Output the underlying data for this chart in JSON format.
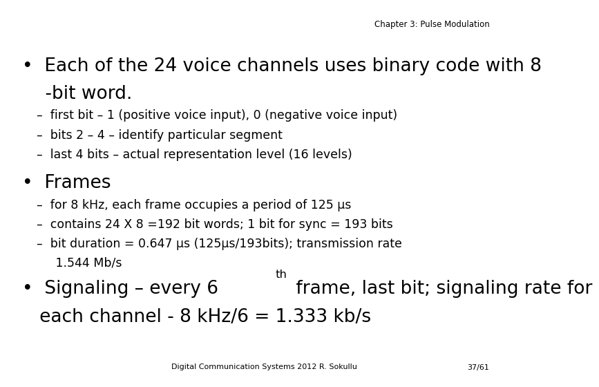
{
  "background_color": "#ffffff",
  "header": "Chapter 3: Pulse Modulation",
  "header_fontsize": 8.5,
  "footer_left": "Digital Communication Systems 2012 R. Sokullu",
  "footer_right": "37/61",
  "footer_fontsize": 8,
  "bullet1_line1": "•  Each of the 24 voice channels uses binary code with 8",
  "bullet1_line2": "    -bit word.",
  "bullet1_fontsize": 19,
  "sub1_lines": [
    "–  first bit – 1 (positive voice input), 0 (negative voice input)",
    "–  bits 2 – 4 – identify particular segment",
    "–  last 4 bits – actual representation level (16 levels)"
  ],
  "sub_fontsize": 12.5,
  "bullet2_text": "•  Frames",
  "bullet2_fontsize": 19,
  "sub2_lines": [
    "–  for 8 kHz, each frame occupies a period of 125 μs",
    "–  contains 24 X 8 =192 bit words; 1 bit for sync = 193 bits",
    "–  bit duration = 0.647 μs (125μs/193bits); transmission rate"
  ],
  "sub2_line3b": "     1.544 Mb/s",
  "bullet3_pre": "•  Signaling – every 6",
  "bullet3_sup": "th",
  "bullet3_post": " frame, last bit; signaling rate for",
  "bullet3_line2": "   each channel - 8 kHz/6 = 1.333 kb/s",
  "bullet3_fontsize": 19,
  "text_color": "#000000",
  "font_family": "DejaVu Sans"
}
